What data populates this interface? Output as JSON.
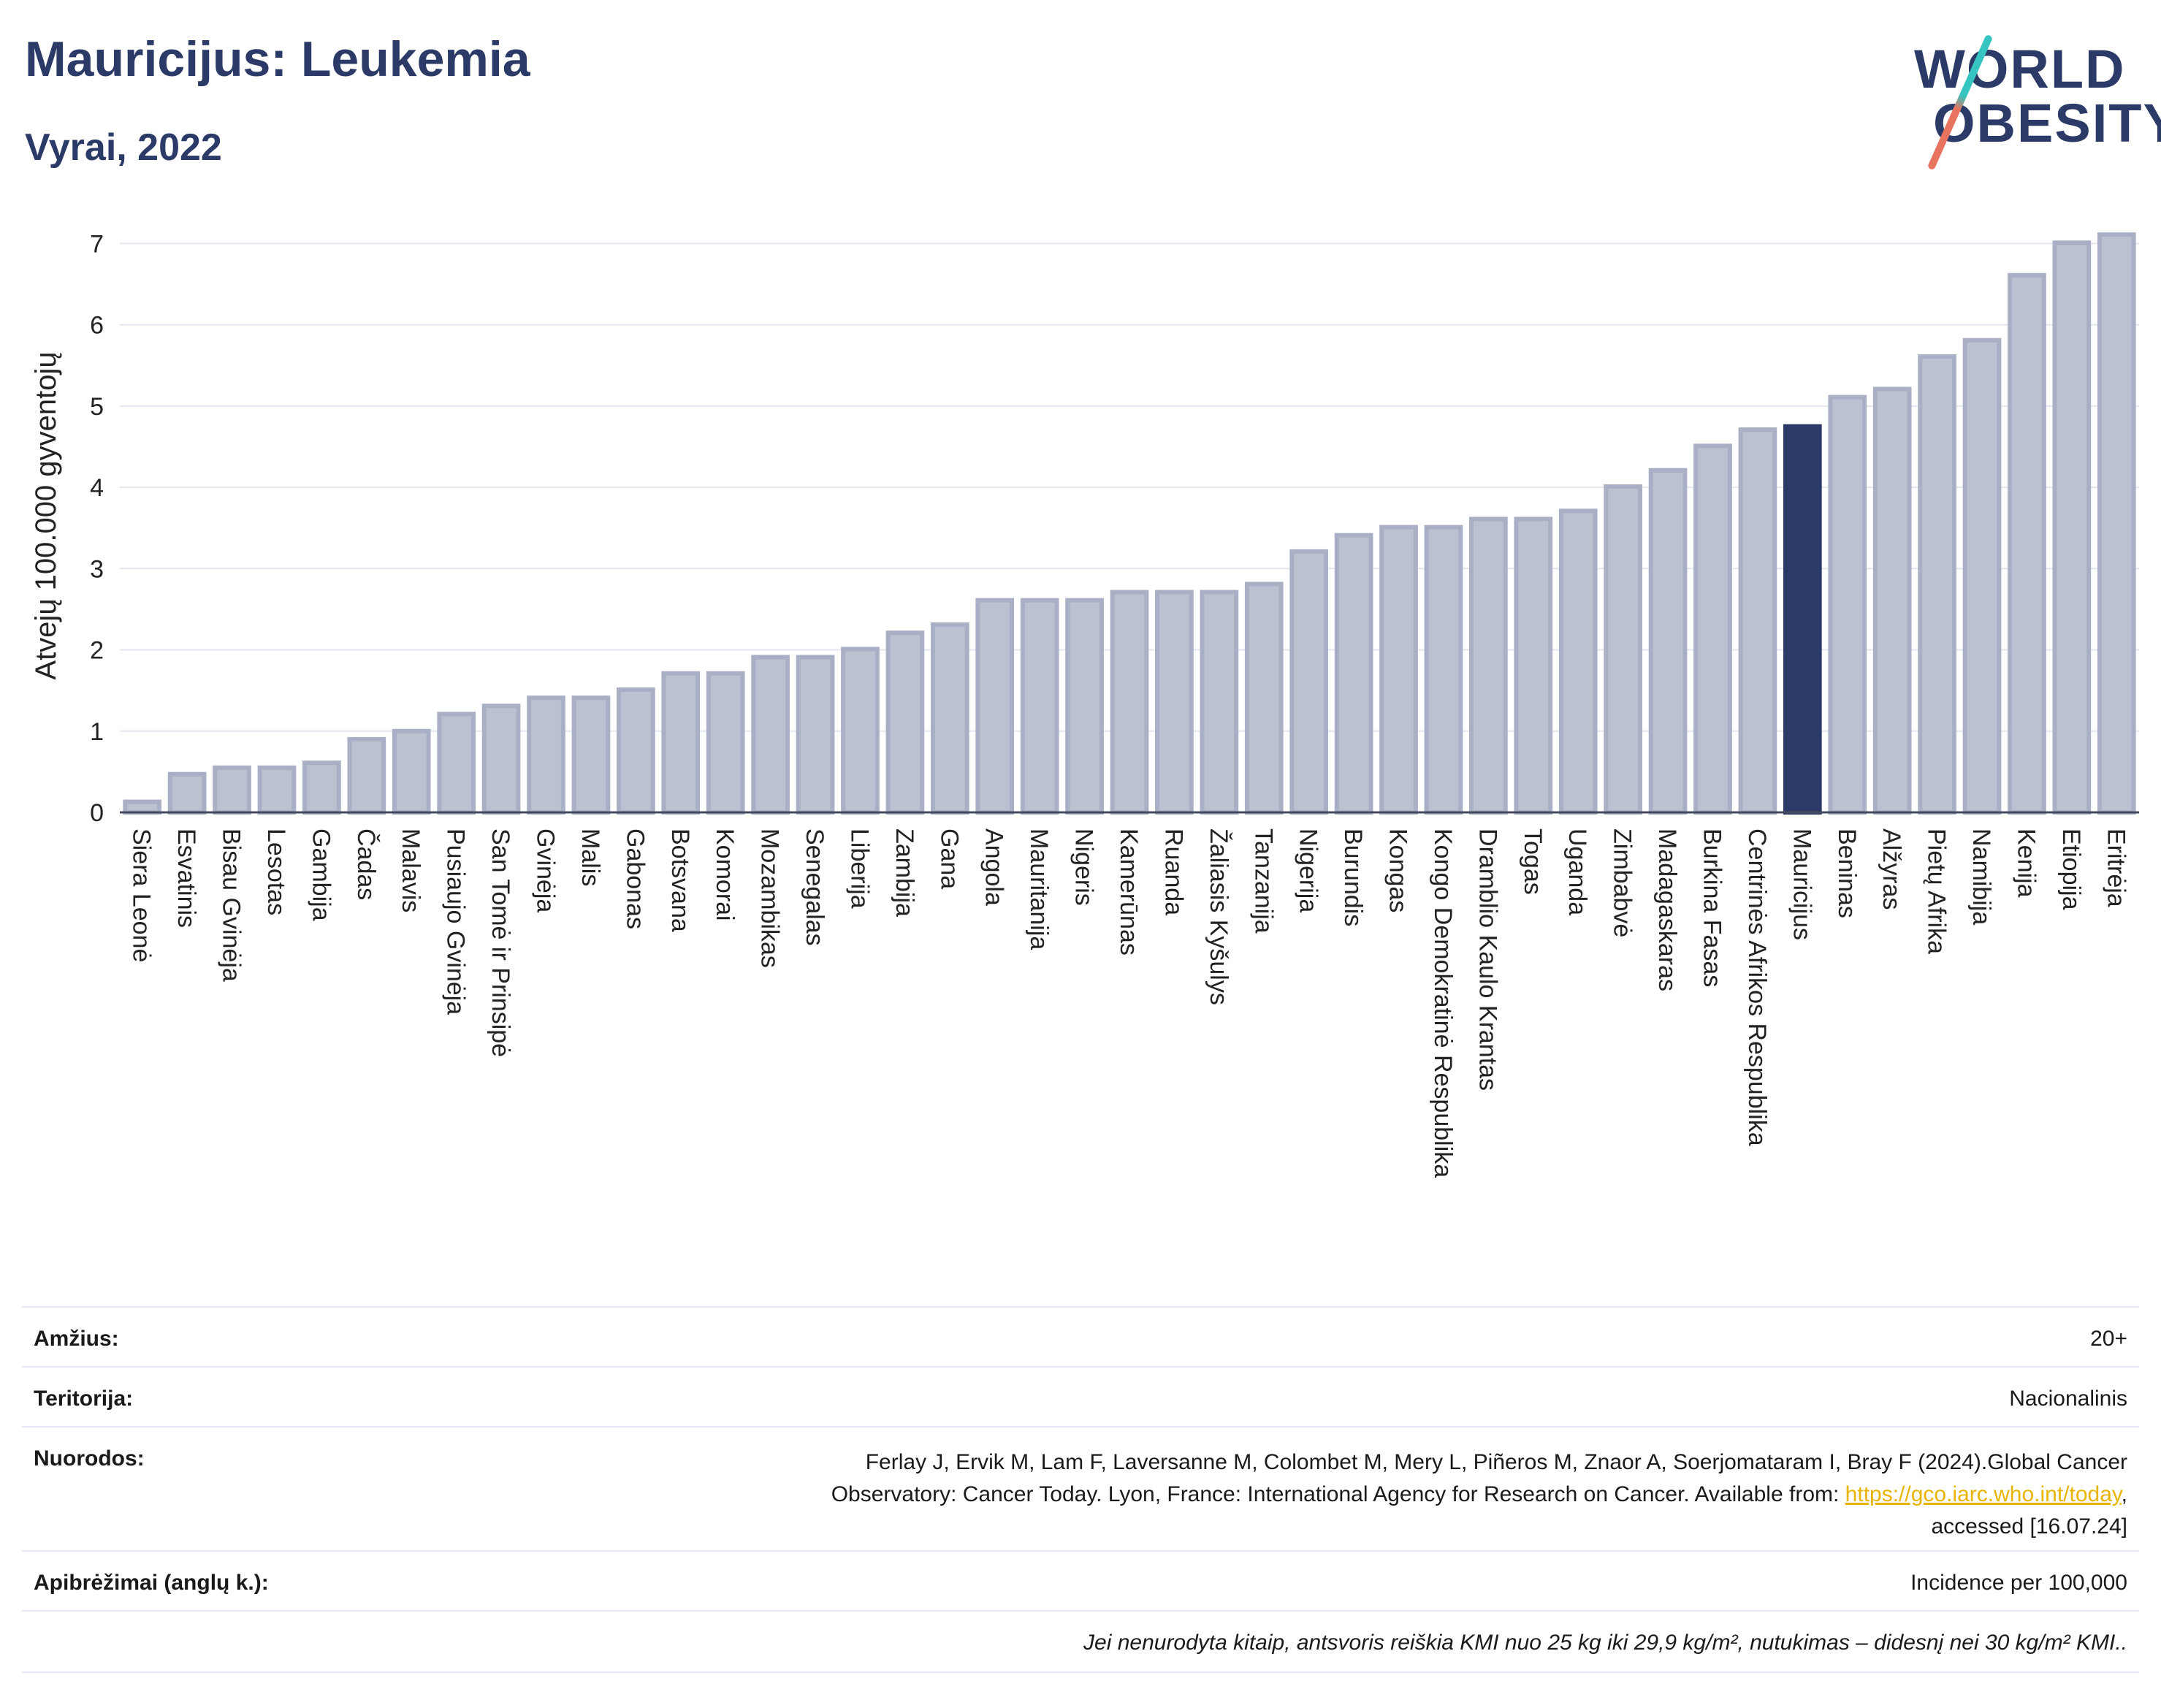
{
  "header": {
    "title": "Mauricijus: Leukemia",
    "subtitle": "Vyrai, 2022",
    "logo_line1": "WORLD",
    "logo_line2": "OBESITY"
  },
  "chart_data": {
    "type": "bar",
    "title": "",
    "xlabel": "",
    "ylabel": "Atvejų 100.000 gyventojų",
    "ylim": [
      0,
      7.3
    ],
    "yticks": [
      0,
      1,
      2,
      3,
      4,
      5,
      6,
      7
    ],
    "grid": true,
    "highlight": "Mauricijus",
    "colors": {
      "bar": "#bcc1d1",
      "bar_border": "#a9afc4",
      "highlight": "#2b3a67",
      "grid": "#e4e6ef",
      "axis": "#444a5e"
    },
    "categories": [
      "Siera Leonė",
      "Esvatinis",
      "Bisau Gvinėja",
      "Lesotas",
      "Gambija",
      "Čadas",
      "Malavis",
      "Pusiaujo Gvinėja",
      "San Tomė ir Prinsipė",
      "Gvinėja",
      "Malis",
      "Gabonas",
      "Botsvana",
      "Komorai",
      "Mozambikas",
      "Senegalas",
      "Liberija",
      "Zambija",
      "Gana",
      "Angola",
      "Mauritanija",
      "Nigeris",
      "Kamerūnas",
      "Ruanda",
      "Žaliasis Kyšulys",
      "Tanzanija",
      "Nigerija",
      "Burundis",
      "Kongas",
      "Kongo Demokratinė Respublika",
      "Dramblio Kaulo Krantas",
      "Togas",
      "Uganda",
      "Zimbabvė",
      "Madagaskaras",
      "Burkina Fasas",
      "Centrinės Afrikos Respublika",
      "Mauricijus",
      "Beninas",
      "Alžyras",
      "Pietų Afrika",
      "Namibija",
      "Kenija",
      "Etiopija",
      "Eritrėja"
    ],
    "values": [
      0.13,
      0.47,
      0.55,
      0.55,
      0.61,
      0.9,
      1.0,
      1.21,
      1.31,
      1.41,
      1.41,
      1.51,
      1.71,
      1.71,
      1.91,
      1.91,
      2.01,
      2.21,
      2.31,
      2.61,
      2.61,
      2.61,
      2.71,
      2.71,
      2.71,
      2.81,
      3.21,
      3.41,
      3.51,
      3.51,
      3.61,
      3.61,
      3.71,
      4.01,
      4.21,
      4.51,
      4.71,
      4.75,
      5.11,
      5.21,
      5.61,
      5.81,
      6.61,
      7.01,
      7.11
    ]
  },
  "meta": {
    "age_label": "Amžius:",
    "age_value": "20+",
    "territory_label": "Teritorija:",
    "territory_value": "Nacionalinis",
    "refs_label": "Nuorodos:",
    "refs_line1": "Ferlay J, Ervik M, Lam F, Laversanne M, Colombet M, Mery L, Piñeros M, Znaor A, Soerjomataram I, Bray F (2024).Global Cancer",
    "refs_line2": "Observatory: Cancer Today. Lyon, France: International Agency for Research on Cancer. Available from: ",
    "refs_link": "https://gco.iarc.who.int/today",
    "refs_line2_end": ",",
    "refs_line3": "accessed [16.07.24]",
    "defs_label": "Apibrėžimai (anglų k.):",
    "defs_value": "Incidence per 100,000",
    "note": "Jei nenurodyta kitaip, antsvoris reiškia KMI nuo 25 kg iki 29,9 kg/m², nutukimas – didesnį nei 30 kg/m² KMI.."
  }
}
